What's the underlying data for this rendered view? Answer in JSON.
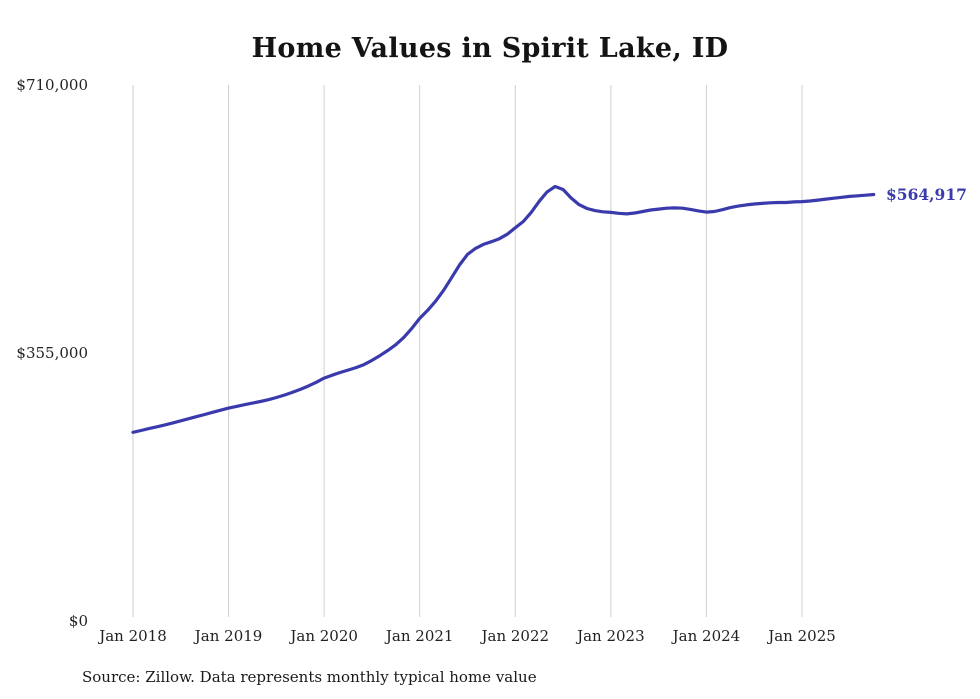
{
  "chart": {
    "title": "Home Values in Spirit Lake, ID",
    "end_label": "$564,917",
    "source": "Source: Zillow. Data represents monthly typical home value",
    "accent": "#3a3aad"
  },
  "chart_data": {
    "type": "line",
    "title": "Home Values in Spirit Lake, ID",
    "x_ticks": [
      "Jan 2018",
      "Jan 2019",
      "Jan 2020",
      "Jan 2021",
      "Jan 2022",
      "Jan 2023",
      "Jan 2024",
      "Jan 2025"
    ],
    "y_ticks": [
      {
        "label": "$0",
        "value": 0
      },
      {
        "label": "$355,000",
        "value": 355000
      },
      {
        "label": "$710,000",
        "value": 710000
      }
    ],
    "ylim": [
      0,
      710000
    ],
    "grid": "vertical",
    "line_color": "#3a3aad",
    "end_value": 564917,
    "series": [
      {
        "name": "Typical home value",
        "start": "Jan 2018",
        "interval": "monthly",
        "values": [
          250000,
          252400,
          254800,
          257200,
          259800,
          262400,
          265200,
          268000,
          270800,
          273600,
          276400,
          279200,
          282000,
          284300,
          286500,
          288600,
          290800,
          293200,
          296000,
          299200,
          302800,
          306800,
          311200,
          316200,
          321800,
          325600,
          329200,
          332400,
          335600,
          339600,
          345200,
          351600,
          358400,
          366000,
          375600,
          387600,
          400800,
          411600,
          423600,
          438000,
          454800,
          471600,
          485600,
          493600,
          498800,
          502400,
          506400,
          512400,
          520800,
          529200,
          541200,
          556000,
          568400,
          575600,
          571600,
          560400,
          551600,
          546400,
          543600,
          542000,
          541200,
          540000,
          539200,
          540400,
          542400,
          544400,
          545600,
          546800,
          547200,
          546800,
          545200,
          543200,
          541600,
          542400,
          544800,
          547600,
          549600,
          551200,
          552400,
          553200,
          554000,
          554400,
          554400,
          555200,
          555600,
          556400,
          557600,
          558800,
          560000,
          561200,
          562400,
          563200,
          564000,
          564917
        ]
      }
    ]
  }
}
